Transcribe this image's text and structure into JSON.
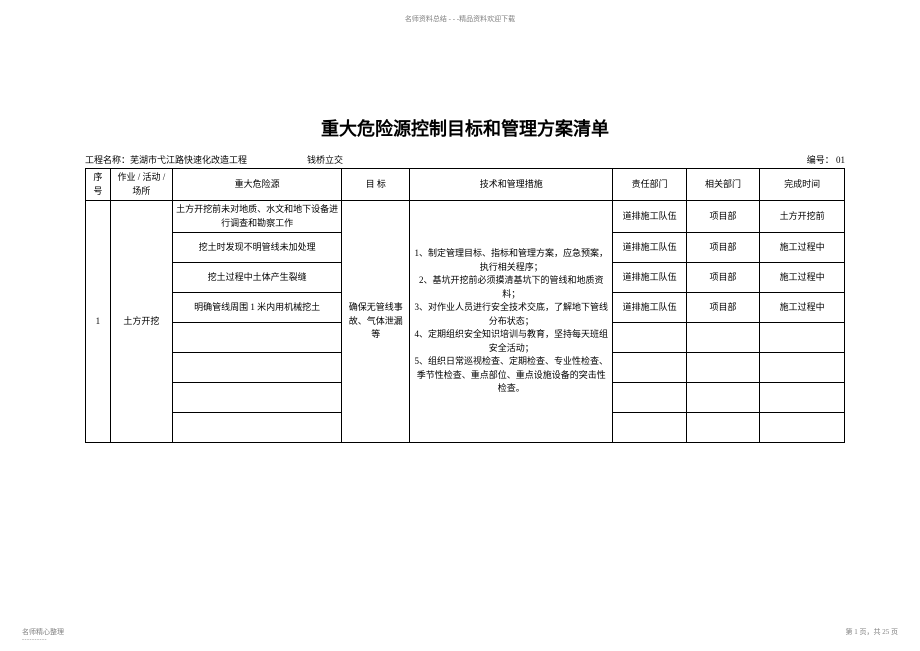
{
  "header_top": "名师资料总结 - - -精品资料欢迎下载",
  "title": "重大危险源控制目标和管理方案清单",
  "project_label": "工程名称：芜湖市弋江路快速化改造工程",
  "project_mid": "钱桥立交",
  "doc_no": "编号： 01",
  "columns": {
    "seq": "序号",
    "activity": "作业 / 活动 / 场所",
    "hazard": "重大危险源",
    "objective": "目  标",
    "measures": "技术和管理措施",
    "resp_dept": "责任部门",
    "rel_dept": "相关部门",
    "time": "完成时间"
  },
  "seq_1": "1",
  "activity_1": "土方开挖",
  "objective_1": "确保无管线事故、气体泄漏等",
  "measures_1": "1、制定管理目标、指标和管理方案，应急预案，执行相关程序；\n2、基坑开挖前必须摸清基坑下的管线和地质资料；\n3、对作业人员进行安全技术交底，了解地下管线分布状态；\n4、定期组织安全知识培训与教育，坚持每天班组安全活动；\n5、组织日常巡视检查、定期检查、专业性检查、季节性检查、重点部位、重点设施设备的突击性检查。",
  "rows": [
    {
      "hazard": "土方开挖前未对地质、水文和地下设备进行调查和勘察工作",
      "resp": "道排施工队伍",
      "rel": "项目部",
      "time": "土方开挖前"
    },
    {
      "hazard": "挖土时发现不明管线未加处理",
      "resp": "道排施工队伍",
      "rel": "项目部",
      "time": "施工过程中"
    },
    {
      "hazard": "挖土过程中土体产生裂缝",
      "resp": "道排施工队伍",
      "rel": "项目部",
      "time": "施工过程中"
    },
    {
      "hazard": "明确管线周围  1 米内用机械挖土",
      "resp": "道排施工队伍",
      "rel": "项目部",
      "time": "施工过程中"
    }
  ],
  "footer_left": "名师精心整理",
  "footer_right": "第 1 页，共 25 页"
}
